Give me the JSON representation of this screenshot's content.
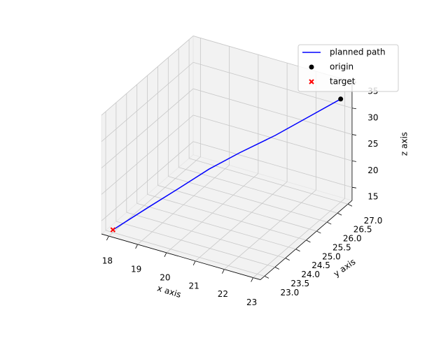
{
  "chart_data": {
    "type": "line3d",
    "xlabel": "x axis",
    "ylabel": "y axis",
    "zlabel": "z axis",
    "xlim": [
      17.75,
      23.25
    ],
    "ylim": [
      22.8,
      27.2
    ],
    "zlim": [
      12.5,
      35
    ],
    "xticks": [
      18,
      19,
      20,
      21,
      22,
      23
    ],
    "yticks": [
      {
        "value": 23,
        "label": "23.0"
      },
      23.5,
      {
        "value": 24,
        "label": "24.0"
      },
      24.5,
      {
        "value": 25,
        "label": "25.0"
      },
      25.5,
      {
        "value": 26,
        "label": "26.0"
      },
      26.5,
      {
        "value": 27,
        "label": "27.0"
      }
    ],
    "zticks": [
      15,
      20,
      25,
      30,
      35
    ],
    "grid": true,
    "legend": "upper right",
    "series": [
      {
        "name": "planned path",
        "kind": "line",
        "color": "#0000ff",
        "x": [
          18,
          18.8,
          19.4,
          20.1,
          20.8,
          21.6,
          22.3,
          23
        ],
        "y": [
          23,
          23.6,
          24.1,
          24.7,
          25.2,
          25.8,
          26.4,
          27
        ],
        "z": [
          13,
          16.5,
          19,
          22,
          24.5,
          27,
          29.5,
          32
        ]
      },
      {
        "name": "origin",
        "kind": "dot",
        "color": "#000000",
        "x": [
          23
        ],
        "y": [
          27
        ],
        "z": [
          32
        ]
      },
      {
        "name": "target",
        "kind": "cross",
        "color": "#ff0000",
        "x": [
          18
        ],
        "y": [
          23
        ],
        "z": [
          13
        ]
      }
    ]
  }
}
